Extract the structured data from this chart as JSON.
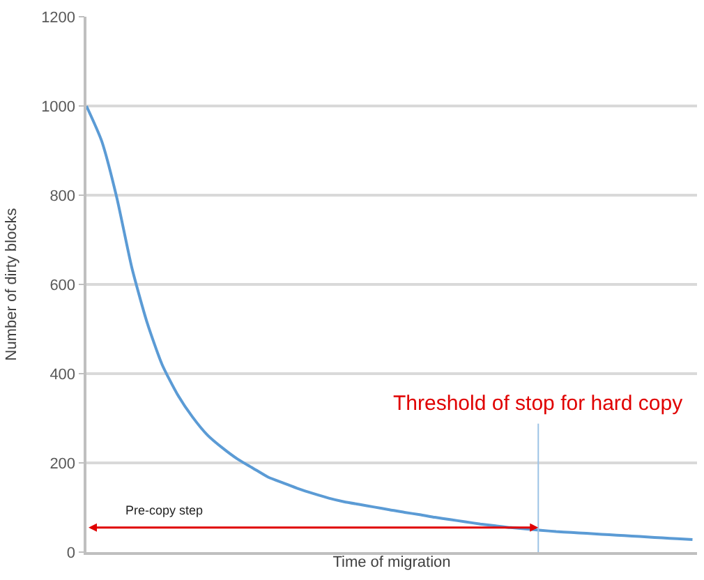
{
  "chart_data": {
    "type": "line",
    "xlabel": "Time of migration",
    "ylabel": "Number of dirty blocks",
    "categories": [
      null,
      null,
      null,
      null,
      null,
      null,
      null,
      null,
      null,
      null,
      null,
      null,
      null,
      null,
      null,
      null,
      null,
      null,
      null,
      null,
      null,
      null,
      null,
      null,
      null,
      null,
      null,
      null,
      null,
      null,
      null,
      null,
      null,
      null,
      null,
      null,
      null,
      null,
      null,
      null,
      null
    ],
    "series": [
      {
        "color": "#5b9bd5",
        "values": [
          1000,
          922,
          795,
          637,
          515,
          420,
          354,
          303,
          262,
          233,
          208,
          188,
          168,
          155,
          142,
          131,
          121,
          113,
          107,
          101,
          95,
          89,
          84,
          78,
          73,
          68,
          63,
          59,
          55,
          52,
          49,
          46,
          44,
          42,
          40,
          38,
          36,
          34,
          32,
          30,
          28
        ]
      }
    ],
    "ylim": [
      0,
      1200
    ],
    "yticks": [
      0,
      200,
      400,
      600,
      800,
      1000,
      1200
    ],
    "grid": "y",
    "legend": false,
    "marker": "none",
    "line_style": "solid",
    "annotations": [
      "Threshold of stop for hard copy",
      "Pre-copy step"
    ]
  }
}
